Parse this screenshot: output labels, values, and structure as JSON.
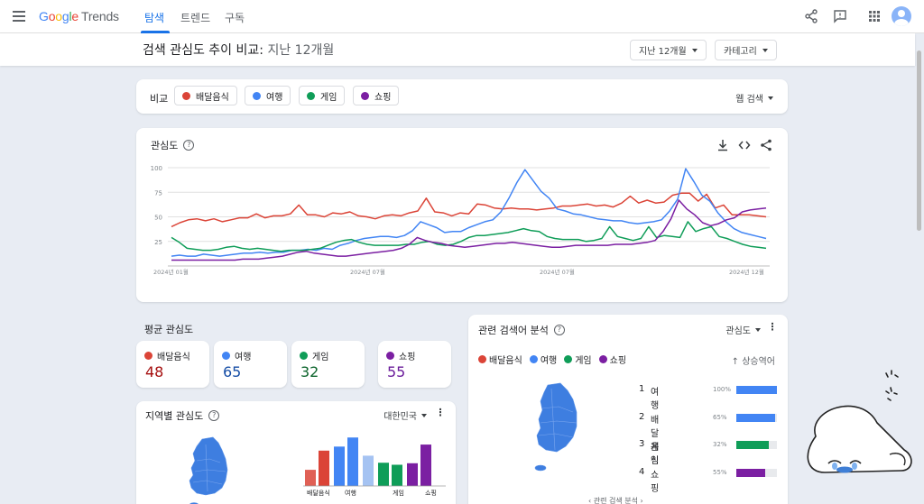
{
  "header": {
    "logo_google": [
      "G",
      "o",
      "o",
      "g",
      "l",
      "e"
    ],
    "logo_trends": "Trends",
    "tabs": [
      "탐색",
      "트렌드",
      "구독"
    ],
    "active_tab": "탐색"
  },
  "subheader": {
    "title_main": "검색 관심도 추이 비교:",
    "title_period": " 지난 12개월",
    "period_dropdown": "지난 12개월",
    "category_dropdown": "카테고리"
  },
  "compare": {
    "label": "비교",
    "terms": [
      {
        "name": "배달음식",
        "color": "#db4437"
      },
      {
        "name": "여행",
        "color": "#4285f4"
      },
      {
        "name": "게임",
        "color": "#0f9d58"
      },
      {
        "name": "쇼핑",
        "color": "#7b1fa2"
      }
    ],
    "search_type": "웹 검색"
  },
  "interest_chart": {
    "title": "관심도",
    "help": "?"
  },
  "chart_data": {
    "type": "line",
    "yticks": [
      "100",
      "75",
      "50",
      "25"
    ],
    "ylim": [
      0,
      100
    ],
    "xticks": [
      "2024년 01월",
      "2024년 07월",
      "2024년 07월",
      "2024년 12월"
    ],
    "series": [
      {
        "name": "배달음식",
        "color": "#db4437",
        "values": [
          40,
          44,
          47,
          48,
          46,
          48,
          45,
          47,
          49,
          49,
          53,
          49,
          51,
          51,
          53,
          62,
          52,
          52,
          50,
          54,
          53,
          55,
          51,
          50,
          48,
          51,
          52,
          51,
          54,
          56,
          69,
          55,
          54,
          51,
          54,
          53,
          63,
          62,
          59,
          58,
          59,
          58,
          58,
          57,
          58,
          59,
          61,
          61,
          62,
          63,
          61,
          62,
          60,
          64,
          71,
          64,
          67,
          64,
          65,
          72,
          74,
          74,
          66,
          73,
          59,
          62,
          52,
          52,
          52,
          51,
          50
        ]
      },
      {
        "name": "여행",
        "color": "#4285f4",
        "values": [
          10,
          11,
          10,
          10,
          12,
          11,
          10,
          11,
          12,
          13,
          13,
          14,
          13,
          14,
          14,
          16,
          16,
          17,
          16,
          18,
          17,
          21,
          23,
          26,
          28,
          29,
          30,
          30,
          29,
          31,
          36,
          45,
          42,
          39,
          34,
          35,
          35,
          39,
          42,
          45,
          47,
          55,
          69,
          85,
          98,
          87,
          76,
          69,
          58,
          56,
          53,
          52,
          50,
          48,
          47,
          46,
          46,
          44,
          43,
          44,
          45,
          47,
          56,
          68,
          99,
          86,
          72,
          66,
          54,
          45,
          38,
          34,
          32,
          30,
          28
        ]
      },
      {
        "name": "게임",
        "color": "#0f9d58",
        "values": [
          29,
          24,
          18,
          17,
          16,
          16,
          17,
          19,
          20,
          18,
          17,
          18,
          17,
          16,
          15,
          16,
          16,
          16,
          17,
          18,
          21,
          24,
          26,
          27,
          24,
          22,
          21,
          21,
          21,
          21,
          22,
          22,
          24,
          25,
          22,
          21,
          22,
          25,
          29,
          31,
          31,
          32,
          33,
          34,
          36,
          38,
          36,
          35,
          30,
          28,
          27,
          27,
          27,
          25,
          26,
          28,
          40,
          30,
          28,
          26,
          28,
          40,
          29,
          31,
          30,
          29,
          45,
          35,
          38,
          40,
          30,
          28,
          25,
          22,
          20,
          19,
          18
        ]
      },
      {
        "name": "쇼핑",
        "color": "#7b1fa2",
        "values": [
          6,
          6,
          6,
          6,
          6,
          6,
          6,
          6,
          6,
          7,
          7,
          7,
          8,
          9,
          10,
          12,
          14,
          15,
          13,
          12,
          11,
          10,
          10,
          11,
          12,
          13,
          14,
          15,
          16,
          18,
          22,
          29,
          26,
          24,
          23,
          21,
          20,
          19,
          20,
          21,
          22,
          23,
          23,
          24,
          23,
          22,
          21,
          20,
          19,
          19,
          20,
          21,
          21,
          21,
          21,
          21,
          22,
          22,
          22,
          23,
          24,
          26,
          35,
          48,
          67,
          58,
          52,
          44,
          41,
          43,
          47,
          49,
          55,
          57,
          58,
          59
        ]
      }
    ]
  },
  "avg_interest": {
    "title": "평균 관심도",
    "items": [
      {
        "name": "배달음식",
        "value": "48",
        "color": "#a50e0e",
        "dot": "#db4437"
      },
      {
        "name": "여행",
        "value": "65",
        "color": "#174ea6",
        "dot": "#4285f4"
      },
      {
        "name": "게임",
        "value": "32",
        "color": "#0d652d",
        "dot": "#0f9d58"
      },
      {
        "name": "쇼핑",
        "value": "55",
        "color": "#6a1b9a",
        "dot": "#7b1fa2"
      }
    ]
  },
  "region": {
    "title": "지역별 관심도",
    "dropdown": "대한민국",
    "bar_labels": [
      "배달음식",
      "여행",
      "게임",
      "쇼핑"
    ],
    "bar_groups": [
      {
        "label": "배달음식",
        "color_light": "#e06055",
        "color": "#db4437",
        "values": [
          32,
          70
        ]
      },
      {
        "label": "여행",
        "color_light": "#4285f4",
        "color": "#4285f4",
        "values": [
          78,
          96
        ]
      },
      {
        "label": "",
        "color_light": "#a5c3f2",
        "color": "#a5c3f2",
        "values": [
          60
        ]
      },
      {
        "label": "게임",
        "color_light": "#0f9d58",
        "color": "#0f9d58",
        "values": [
          46,
          42
        ]
      },
      {
        "label": "쇼핑",
        "color_light": "#7b1fa2",
        "color": "#7b1fa2",
        "values": [
          45,
          82
        ]
      }
    ]
  },
  "related": {
    "title": "관련 검색어 분석",
    "dropdown": "관심도",
    "sort_label": "↑ 상승역어",
    "items": [
      {
        "rank": "1",
        "name": "여행",
        "pct": "100%",
        "value": 1.0,
        "color": "#4285f4"
      },
      {
        "rank": "2",
        "name": "배달음식",
        "pct": "65%",
        "value": 0.95,
        "color": "#4285f4"
      },
      {
        "rank": "3",
        "name": "게임",
        "pct": "32%",
        "value": 0.8,
        "color": "#0f9d58"
      },
      {
        "rank": "4",
        "name": "쇼핑",
        "pct": "55%",
        "value": 0.7,
        "color": "#7b1fa2"
      }
    ],
    "footer": "관련 검색 분석"
  }
}
